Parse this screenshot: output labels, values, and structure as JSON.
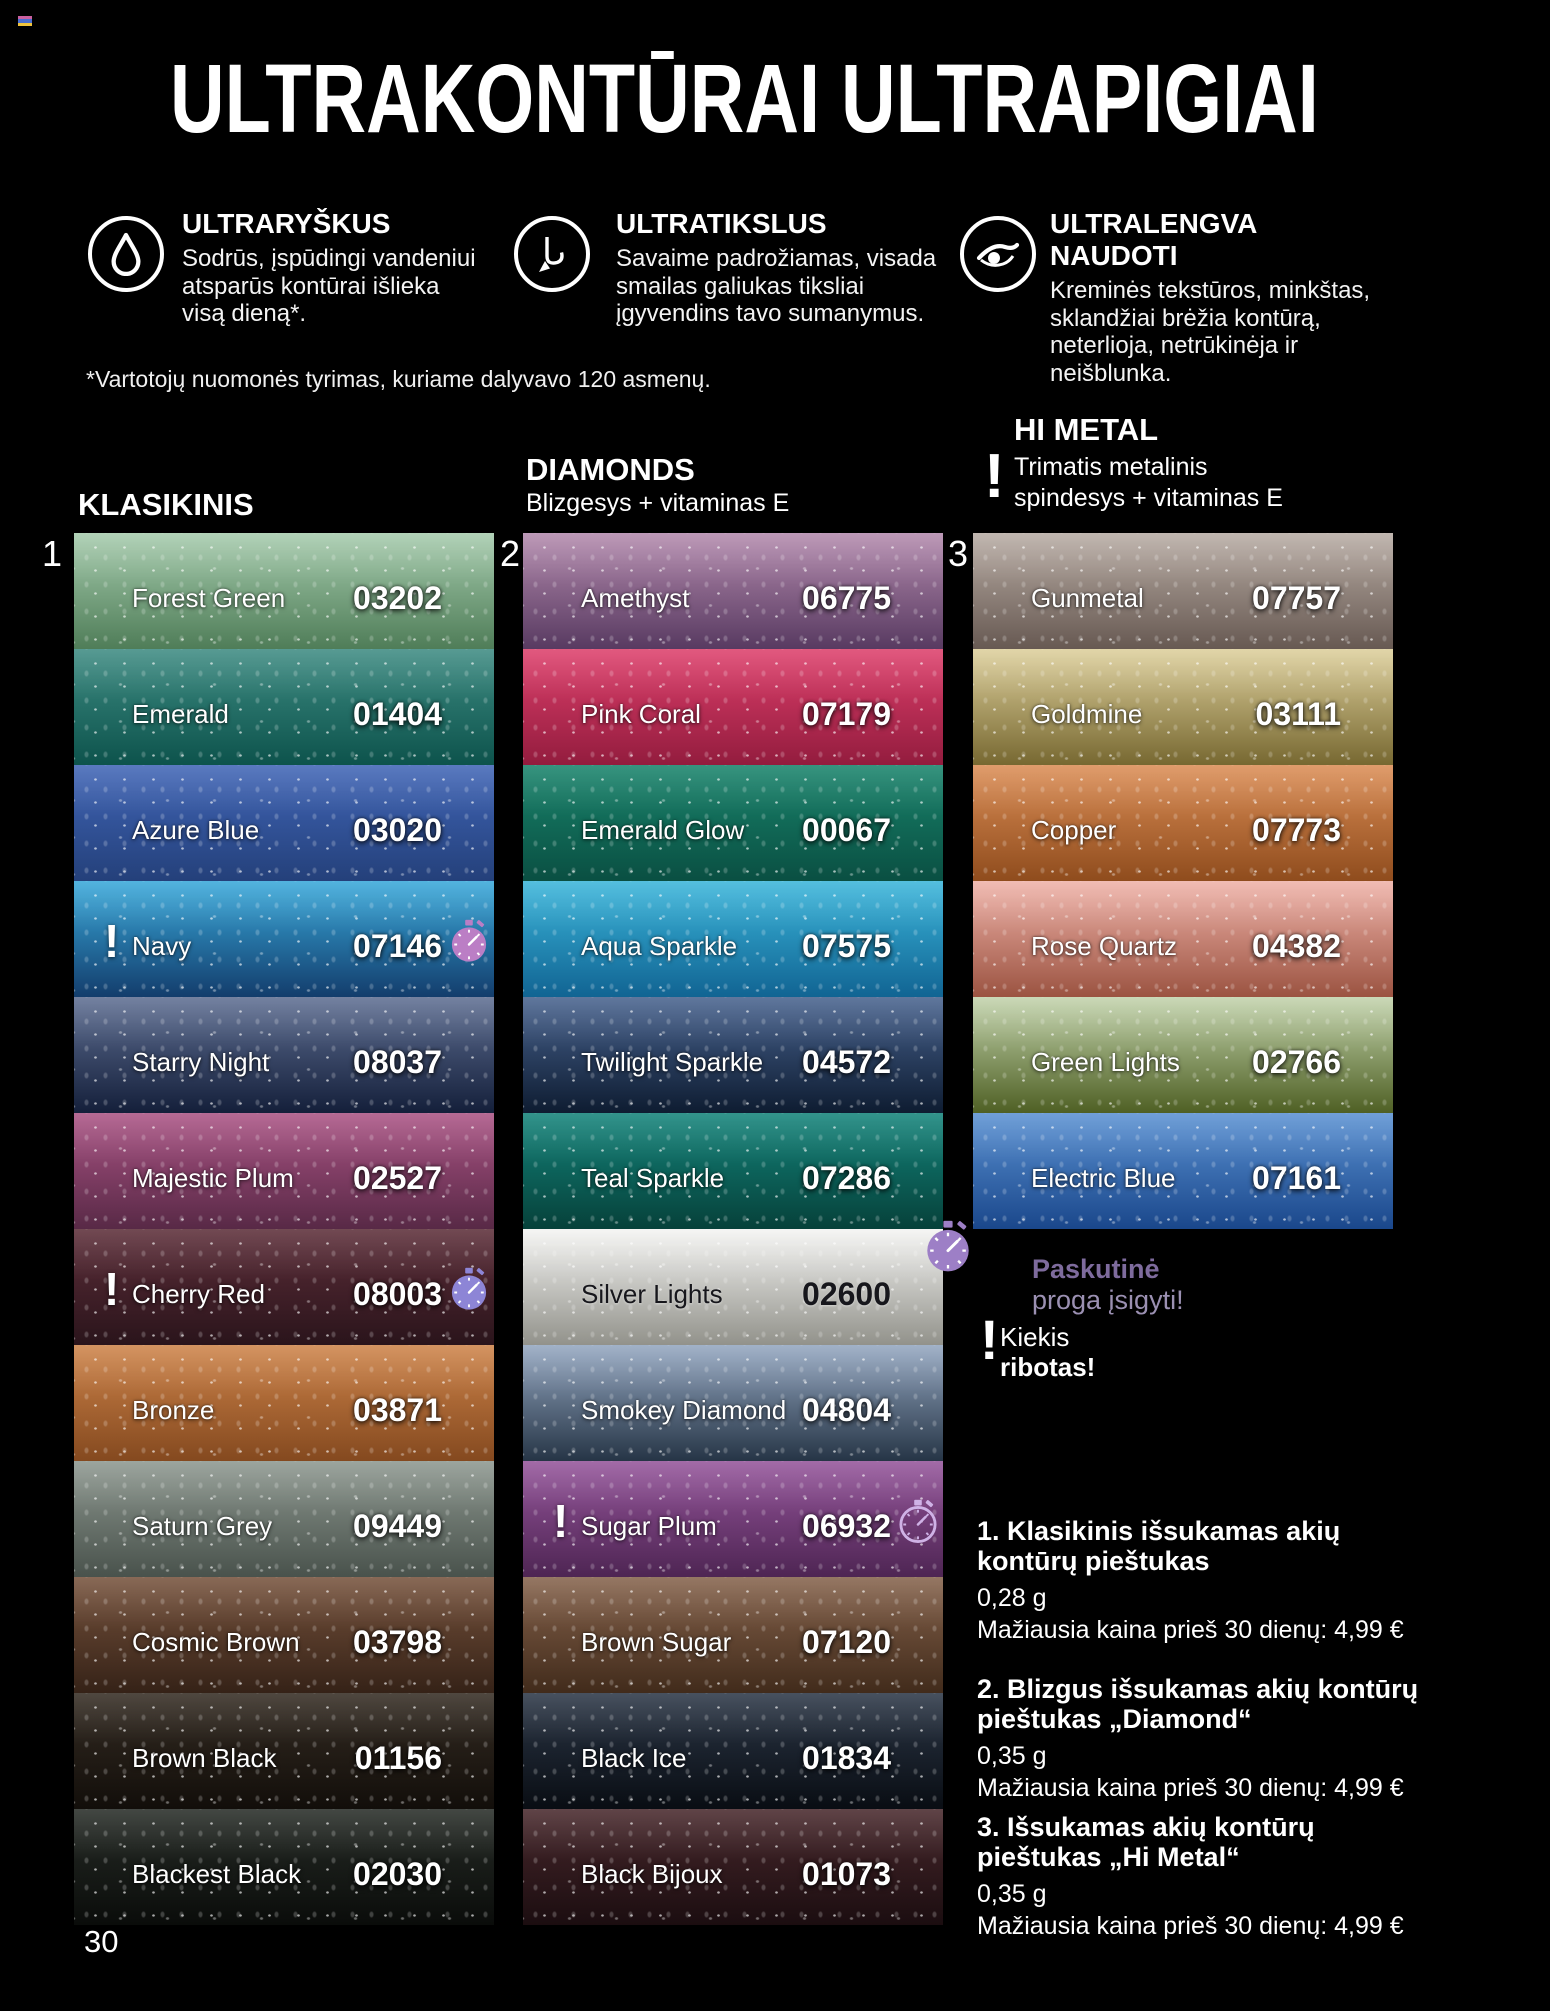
{
  "header": {
    "title": "ULTRAKONTŪRAI ULTRAPIGIAI",
    "features": [
      {
        "icon": "droplet-icon",
        "heading": "ULTRARYŠKUS",
        "text": "Sodrūs, įspūdingi vandeniui\natsparūs kontūrai išlieka\nvisą dieną*."
      },
      {
        "icon": "pencil-icon",
        "heading": "ULTRATIKSLUS",
        "text": "Savaime padrožiamas, visada\nsmailas galiukas tiksliai\nįgyvendins tavo sumanymus."
      },
      {
        "icon": "eye-icon",
        "heading": "ULTRALENGVA NAUDOTI",
        "text": "Kreminės tekstūros, minkštas,\nsklandžiai brėžia kontūrą,\nneterlioja, netrūkinėja ir\nneišblunka."
      }
    ],
    "footnote": "*Vartotojų nuomonės tyrimas, kuriame dalyvavo 120 asmenų."
  },
  "icons": {
    "limited": "!"
  },
  "brand": {
    "accent_purple": "#9d7fc6",
    "legend_text_bold": "#7e6b9d",
    "legend_text_light": "#9b90b2",
    "flag": [
      "#c95f9e",
      "#4a6fd0",
      "#f0c43c"
    ]
  },
  "columns": [
    {
      "index": "1",
      "title": "KLASIKINIS",
      "subtitle": "",
      "shades": [
        {
          "name": "Forest Green",
          "code": "03202",
          "colors": {
            "top": "#a6cbad",
            "bottom": "#4f7d58"
          }
        },
        {
          "name": "Emerald",
          "code": "01404",
          "colors": {
            "top": "#3d8b82",
            "bottom": "#0d534c"
          }
        },
        {
          "name": "Azure Blue",
          "code": "03020",
          "colors": {
            "top": "#4065b6",
            "bottom": "#24407a"
          }
        },
        {
          "name": "Navy",
          "code": "07146",
          "limited": true,
          "last_chance": true,
          "clock_color": "#bb7ec5",
          "colors": {
            "top": "#38a8da",
            "bottom": "#133d6c"
          }
        },
        {
          "name": "Starry Night",
          "code": "08037",
          "colors": {
            "top": "#5e6e92",
            "bottom": "#141f3a"
          }
        },
        {
          "name": "Majestic Plum",
          "code": "02527",
          "colors": {
            "top": "#aa5384",
            "bottom": "#582946"
          }
        },
        {
          "name": "Cherry Red",
          "code": "08003",
          "limited": true,
          "last_chance": true,
          "clock_color": "#8d85d6",
          "colors": {
            "top": "#5c2d38",
            "bottom": "#2a141b"
          }
        },
        {
          "name": "Bronze",
          "code": "03871",
          "colors": {
            "top": "#cd8349",
            "bottom": "#84491f"
          }
        },
        {
          "name": "Saturn Grey",
          "code": "09449",
          "colors": {
            "top": "#8d978f",
            "bottom": "#49524c"
          }
        },
        {
          "name": "Cosmic Brown",
          "code": "03798",
          "colors": {
            "top": "#76523c",
            "bottom": "#352217"
          }
        },
        {
          "name": "Brown Black",
          "code": "01156",
          "colors": {
            "top": "#342b22",
            "bottom": "#120e0a"
          }
        },
        {
          "name": "Blackest Black",
          "code": "02030",
          "colors": {
            "top": "#262b26",
            "bottom": "#0a0c0a"
          }
        }
      ]
    },
    {
      "index": "2",
      "title": "DIAMONDS",
      "subtitle": "Blizgesys + vitaminas E",
      "shades": [
        {
          "name": "Amethyst",
          "code": "06775",
          "colors": {
            "top": "#b38aad",
            "bottom": "#583a61"
          }
        },
        {
          "name": "Pink Coral",
          "code": "07179",
          "colors": {
            "top": "#dd3f6b",
            "bottom": "#931c3e"
          }
        },
        {
          "name": "Emerald Glow",
          "code": "00067",
          "colors": {
            "top": "#18836b",
            "bottom": "#0a4f42"
          }
        },
        {
          "name": "Aqua Sparkle",
          "code": "07575",
          "colors": {
            "top": "#3ab5da",
            "bottom": "#116493"
          }
        },
        {
          "name": "Twilight Sparkle",
          "code": "04572",
          "colors": {
            "top": "#47628e",
            "bottom": "#0e1c31"
          }
        },
        {
          "name": "Teal Sparkle",
          "code": "07286",
          "colors": {
            "top": "#13837a",
            "bottom": "#06413a"
          }
        },
        {
          "name": "Silver Lights",
          "code": "02600",
          "text": "dark",
          "colors": {
            "top": "#f4f4f2",
            "bottom": "#92928b"
          }
        },
        {
          "name": "Smokey Diamond",
          "code": "04804",
          "colors": {
            "top": "#93a6c0",
            "bottom": "#263546"
          }
        },
        {
          "name": "Sugar Plum",
          "code": "06932",
          "limited": true,
          "last_chance": true,
          "clock_style": "outline",
          "clock_color": "#cfb2e6",
          "colors": {
            "top": "#94549a",
            "bottom": "#4e2553"
          }
        },
        {
          "name": "Brown Sugar",
          "code": "07120",
          "colors": {
            "top": "#85624b",
            "bottom": "#412b1b"
          }
        },
        {
          "name": "Black Ice",
          "code": "01834",
          "colors": {
            "top": "#2b3646",
            "bottom": "#090d13"
          }
        },
        {
          "name": "Black Bijoux",
          "code": "01073",
          "colors": {
            "top": "#47272b",
            "bottom": "#1b0d10"
          }
        }
      ]
    },
    {
      "index": "3",
      "title": "HI METAL",
      "subtitle": "Trimatis metalinis\nspindesys + vitaminas E",
      "limited": true,
      "shades": [
        {
          "name": "Gunmetal",
          "code": "07757",
          "colors": {
            "top": "#b8aca4",
            "bottom": "#675952"
          }
        },
        {
          "name": "Goldmine",
          "code": "03111",
          "colors": {
            "top": "#ddcf9b",
            "bottom": "#776831"
          }
        },
        {
          "name": "Copper",
          "code": "07773",
          "colors": {
            "top": "#db8d55",
            "bottom": "#8f4c1d"
          }
        },
        {
          "name": "Rose Quartz",
          "code": "04382",
          "colors": {
            "top": "#efb2a8",
            "bottom": "#9b5341"
          }
        },
        {
          "name": "Green Lights",
          "code": "02766",
          "colors": {
            "top": "#c3d3ac",
            "bottom": "#4f6024"
          }
        },
        {
          "name": "Electric Blue",
          "code": "07161",
          "colors": {
            "top": "#5a91d2",
            "bottom": "#1a478b"
          }
        }
      ]
    }
  ],
  "legend": {
    "last_chance": {
      "line1": "Paskutinė",
      "line2": "proga įsigyti!"
    },
    "limited": {
      "line1": "Kiekis",
      "line2": "ribotas!"
    }
  },
  "products": [
    {
      "heading": "1. Klasikinis išsukamas akių\nkontūrų pieštukas",
      "weight": "0,28 g",
      "price_note": "Mažiausia kaina prieš 30 dienų: 4,99 €"
    },
    {
      "heading": "2. Blizgus išsukamas akių kontūrų\npieštukas „Diamond“",
      "weight": "0,35 g",
      "price_note": "Mažiausia kaina prieš 30 dienų: 4,99 €"
    },
    {
      "heading": "3. Išsukamas akių kontūrų\npieštukas „Hi Metal“",
      "weight": "0,35 g",
      "price_note": "Mažiausia kaina prieš 30 dienų: 4,99 €"
    }
  ],
  "page_number": "30"
}
